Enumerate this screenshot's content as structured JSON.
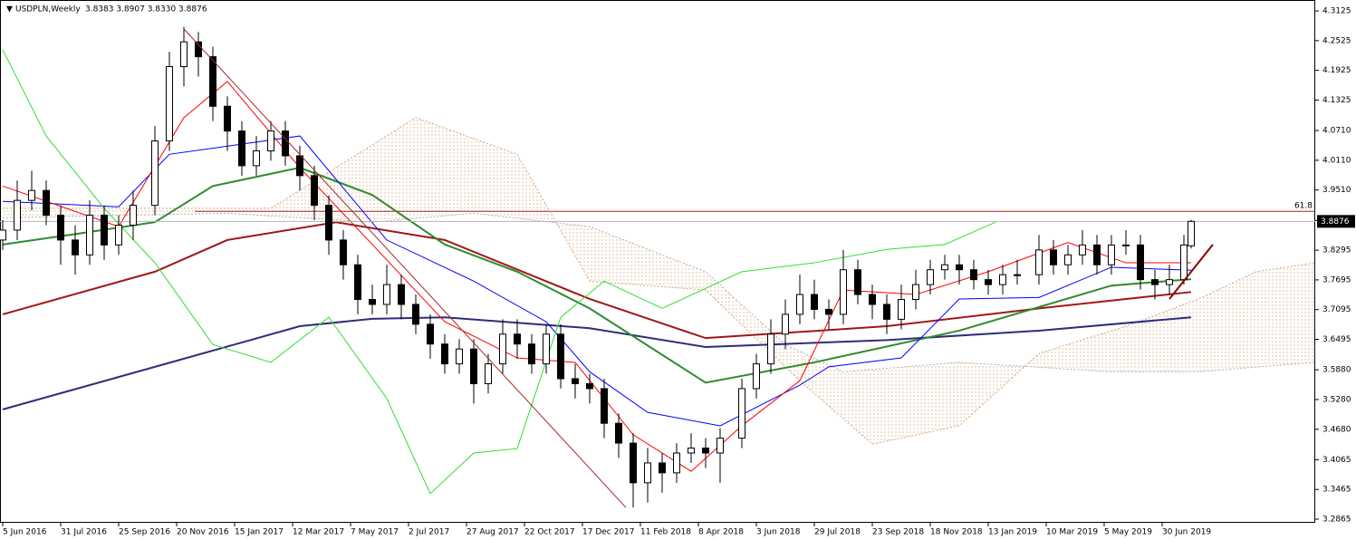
{
  "chart_data": {
    "type": "candlestick",
    "title": "USDPLN,Weekly",
    "ohlc_text": "3.8383 3.8907 3.8330 3.8876",
    "xlim": [
      -0.375,
      181.125
    ],
    "ylim": [
      3.2737,
      4.3345
    ],
    "xticks": [
      {
        "value": 0,
        "label": "5 Jun 2016"
      },
      {
        "value": 8,
        "label": "31 Jul 2016"
      },
      {
        "value": 16,
        "label": "25 Sep 2016"
      },
      {
        "value": 24,
        "label": "20 Nov 2016"
      },
      {
        "value": 32,
        "label": "15 Jan 2017"
      },
      {
        "value": 40,
        "label": "12 Mar 2017"
      },
      {
        "value": 48,
        "label": "7 May 2017"
      },
      {
        "value": 56,
        "label": "2 Jul 2017"
      },
      {
        "value": 64,
        "label": "27 Aug 2017"
      },
      {
        "value": 72,
        "label": "22 Oct 2017"
      },
      {
        "value": 80,
        "label": "17 Dec 2017"
      },
      {
        "value": 88,
        "label": "11 Feb 2018"
      },
      {
        "value": 96,
        "label": "8 Apr 2018"
      },
      {
        "value": 104,
        "label": "3 Jun 2018"
      },
      {
        "value": 112,
        "label": "29 Jul 2018"
      },
      {
        "value": 120,
        "label": "23 Sep 2018"
      },
      {
        "value": 128,
        "label": "18 Nov 2018"
      },
      {
        "value": 136,
        "label": "13 Jan 2019"
      },
      {
        "value": 144,
        "label": "10 Mar 2019"
      },
      {
        "value": 152,
        "label": "5 May 2019"
      },
      {
        "value": 160,
        "label": "30 Jun 2019"
      }
    ],
    "yticks": [
      4.3125,
      4.2525,
      4.1925,
      4.1325,
      {
        "value": 4.071,
        "label": "4.0710"
      },
      {
        "value": 4.011,
        "label": "4.0110"
      },
      {
        "value": 3.951,
        "label": "3.9510"
      },
      3.8895,
      3.8295,
      3.7695,
      3.7095,
      3.6495,
      {
        "value": 3.588,
        "label": "3.5880"
      },
      {
        "value": 3.528,
        "label": "3.5280"
      },
      {
        "value": 3.468,
        "label": "3.4680"
      },
      3.4065,
      3.3465,
      3.2865
    ],
    "candles": {
      "up_color": "#ffffff",
      "down_color": "#000000",
      "border_color": "#000000",
      "x": [
        0,
        2,
        4,
        6,
        8,
        10,
        12,
        14,
        16,
        18,
        21,
        23,
        25,
        27,
        29,
        31,
        33,
        35,
        37,
        39,
        41,
        43,
        45,
        47,
        49,
        51,
        53,
        55,
        57,
        59,
        61,
        63,
        65,
        67,
        69,
        71,
        73,
        75,
        77,
        79,
        81,
        83,
        85,
        87,
        89,
        91,
        93,
        95,
        97,
        99,
        102,
        104,
        106,
        108,
        110,
        112,
        114,
        116,
        118,
        120,
        122,
        124,
        126,
        128,
        130,
        132,
        134,
        136,
        138,
        140,
        143,
        145,
        147,
        149,
        151,
        153,
        155,
        157,
        159,
        161,
        163,
        164
      ],
      "open": [
        3.85,
        3.87,
        3.93,
        3.95,
        3.9,
        3.85,
        3.82,
        3.9,
        3.84,
        3.88,
        3.92,
        4.05,
        4.2,
        4.25,
        4.22,
        4.12,
        4.07,
        4.0,
        4.03,
        4.07,
        4.02,
        3.98,
        3.92,
        3.85,
        3.8,
        3.73,
        3.72,
        3.76,
        3.72,
        3.68,
        3.64,
        3.6,
        3.63,
        3.56,
        3.6,
        3.66,
        3.64,
        3.6,
        3.66,
        3.57,
        3.56,
        3.55,
        3.48,
        3.44,
        3.36,
        3.4,
        3.38,
        3.42,
        3.43,
        3.42,
        3.45,
        3.55,
        3.6,
        3.66,
        3.7,
        3.74,
        3.71,
        3.7,
        3.79,
        3.74,
        3.72,
        3.69,
        3.73,
        3.76,
        3.79,
        3.8,
        3.79,
        3.77,
        3.76,
        3.78,
        3.78,
        3.83,
        3.8,
        3.82,
        3.84,
        3.8,
        3.84,
        3.84,
        3.77,
        3.76,
        3.77,
        3.8383
      ],
      "high": [
        3.89,
        3.97,
        3.99,
        3.97,
        3.92,
        3.88,
        3.93,
        3.92,
        3.9,
        3.95,
        4.08,
        4.23,
        4.28,
        4.27,
        4.24,
        4.14,
        4.09,
        4.06,
        4.09,
        4.09,
        4.04,
        4.0,
        3.94,
        3.87,
        3.82,
        3.76,
        3.8,
        3.78,
        3.74,
        3.7,
        3.66,
        3.65,
        3.65,
        3.62,
        3.69,
        3.69,
        3.66,
        3.68,
        3.68,
        3.6,
        3.58,
        3.57,
        3.5,
        3.46,
        3.43,
        3.42,
        3.44,
        3.46,
        3.45,
        3.47,
        3.57,
        3.62,
        3.69,
        3.73,
        3.78,
        3.77,
        3.73,
        3.83,
        3.81,
        3.76,
        3.74,
        3.76,
        3.79,
        3.81,
        3.82,
        3.82,
        3.81,
        3.79,
        3.8,
        3.81,
        3.86,
        3.85,
        3.84,
        3.87,
        3.86,
        3.86,
        3.87,
        3.86,
        3.79,
        3.8,
        3.86,
        3.8907
      ],
      "low": [
        3.83,
        3.85,
        3.91,
        3.88,
        3.8,
        3.78,
        3.8,
        3.81,
        3.82,
        3.85,
        3.9,
        4.03,
        4.16,
        4.18,
        4.09,
        4.03,
        3.98,
        3.98,
        4.01,
        4.0,
        3.95,
        3.89,
        3.82,
        3.77,
        3.7,
        3.7,
        3.7,
        3.69,
        3.66,
        3.61,
        3.58,
        3.58,
        3.52,
        3.54,
        3.58,
        3.61,
        3.58,
        3.58,
        3.55,
        3.53,
        3.52,
        3.45,
        3.41,
        3.31,
        3.32,
        3.34,
        3.36,
        3.4,
        3.39,
        3.36,
        3.43,
        3.53,
        3.58,
        3.63,
        3.68,
        3.69,
        3.67,
        3.68,
        3.72,
        3.69,
        3.66,
        3.67,
        3.71,
        3.74,
        3.77,
        3.76,
        3.75,
        3.74,
        3.74,
        3.76,
        3.76,
        3.78,
        3.78,
        3.8,
        3.78,
        3.78,
        3.82,
        3.75,
        3.73,
        3.74,
        3.76,
        3.833
      ],
      "close": [
        3.87,
        3.93,
        3.95,
        3.9,
        3.85,
        3.82,
        3.9,
        3.84,
        3.88,
        3.92,
        4.05,
        4.2,
        4.25,
        4.22,
        4.12,
        4.07,
        4.0,
        4.03,
        4.07,
        4.02,
        3.98,
        3.92,
        3.85,
        3.8,
        3.73,
        3.72,
        3.76,
        3.72,
        3.68,
        3.64,
        3.6,
        3.63,
        3.56,
        3.6,
        3.66,
        3.64,
        3.6,
        3.66,
        3.57,
        3.56,
        3.55,
        3.48,
        3.44,
        3.36,
        3.4,
        3.38,
        3.42,
        3.43,
        3.42,
        3.45,
        3.55,
        3.6,
        3.66,
        3.7,
        3.74,
        3.71,
        3.7,
        3.79,
        3.74,
        3.72,
        3.69,
        3.73,
        3.76,
        3.79,
        3.8,
        3.79,
        3.77,
        3.76,
        3.78,
        3.78,
        3.83,
        3.8,
        3.82,
        3.84,
        3.8,
        3.84,
        3.84,
        3.77,
        3.76,
        3.77,
        3.84,
        3.8876
      ]
    },
    "lines": [
      {
        "color": "#d2a679",
        "width": 1,
        "style": "dotted",
        "x": [
          0,
          21,
          37,
          57,
          71,
          81,
          97,
          110,
          120,
          132,
          143,
          155,
          165,
          173,
          181
        ],
        "values": [
          3.914,
          3.914,
          3.914,
          4.097,
          4.023,
          3.767,
          3.749,
          3.566,
          3.438,
          3.475,
          3.621,
          3.676,
          3.731,
          3.786,
          3.804
        ]
      },
      {
        "color": "#b0b0b0",
        "width": 1,
        "style": "dotted",
        "x": [
          0,
          31,
          51,
          65,
          81,
          97,
          108,
          116,
          132,
          153,
          165,
          181
        ],
        "values": [
          3.895,
          3.904,
          3.886,
          3.904,
          3.877,
          3.786,
          3.639,
          3.584,
          3.603,
          3.584,
          3.584,
          3.603
        ]
      },
      {
        "color": "#2e2e7a",
        "width": 2,
        "style": "solid",
        "x": [
          0,
          21,
          41,
          51,
          61,
          81,
          97,
          122,
          143,
          164
        ],
        "values": [
          3.508,
          3.594,
          3.676,
          3.691,
          3.694,
          3.672,
          3.634,
          3.648,
          3.667,
          3.694
        ]
      },
      {
        "color": "#a01818",
        "width": 2,
        "style": "solid",
        "x": [
          0,
          21,
          31,
          46,
          61,
          81,
          97,
          122,
          143,
          164
        ],
        "values": [
          3.7,
          3.786,
          3.85,
          3.886,
          3.85,
          3.731,
          3.652,
          3.676,
          3.712,
          3.745
        ]
      },
      {
        "color": "#2e8b2e",
        "width": 2,
        "style": "solid",
        "x": [
          0,
          10,
          21,
          29,
          41,
          51,
          61,
          71,
          81,
          97,
          112,
          132,
          153,
          164
        ],
        "values": [
          3.841,
          3.862,
          3.886,
          3.959,
          3.996,
          3.941,
          3.841,
          3.786,
          3.712,
          3.562,
          3.603,
          3.667,
          3.758,
          3.771
        ]
      },
      {
        "color": "#0000ff",
        "width": 1,
        "style": "solid",
        "x": [
          0,
          16,
          23,
          41,
          53,
          65,
          75,
          81,
          89,
          99,
          110,
          114,
          124,
          132,
          143,
          153,
          164
        ],
        "values": [
          3.928,
          3.917,
          4.023,
          4.06,
          3.85,
          3.767,
          3.685,
          3.584,
          3.502,
          3.475,
          3.557,
          3.594,
          3.612,
          3.731,
          3.734,
          3.795,
          3.789
        ]
      },
      {
        "color": "#ff0000",
        "width": 1,
        "style": "solid",
        "x": [
          0,
          16,
          25,
          31,
          41,
          51,
          61,
          71,
          79,
          87,
          95,
          102,
          110,
          116,
          126,
          136,
          147,
          155,
          164
        ],
        "values": [
          3.959,
          3.877,
          4.097,
          4.17,
          3.996,
          3.841,
          3.685,
          3.612,
          3.603,
          3.457,
          3.383,
          3.475,
          3.566,
          3.749,
          3.74,
          3.786,
          3.845,
          3.804,
          3.804
        ]
      },
      {
        "color": "#33dd33",
        "width": 1,
        "style": "solid",
        "x": [
          0,
          6,
          14,
          21,
          29,
          37,
          45,
          53,
          59,
          65,
          71,
          77,
          83,
          91,
          102,
          112,
          122,
          130,
          137
        ],
        "values": [
          4.234,
          4.06,
          3.914,
          3.804,
          3.639,
          3.603,
          3.694,
          3.53,
          3.338,
          3.42,
          3.429,
          3.694,
          3.767,
          3.712,
          3.786,
          3.804,
          3.831,
          3.841,
          3.886
        ]
      }
    ],
    "cloud_lines": [
      0,
      1
    ],
    "fibo": {
      "label": "61.8",
      "value": 3.908,
      "color": "#b22222"
    },
    "trendlines": [
      {
        "color": "#a52a2a",
        "width": 1,
        "x": [
          25,
          86
        ],
        "values": [
          4.276,
          3.31
        ]
      },
      {
        "color": "#8b0000",
        "width": 2,
        "x": [
          161,
          167
        ],
        "values": [
          3.731,
          3.841
        ]
      }
    ]
  }
}
